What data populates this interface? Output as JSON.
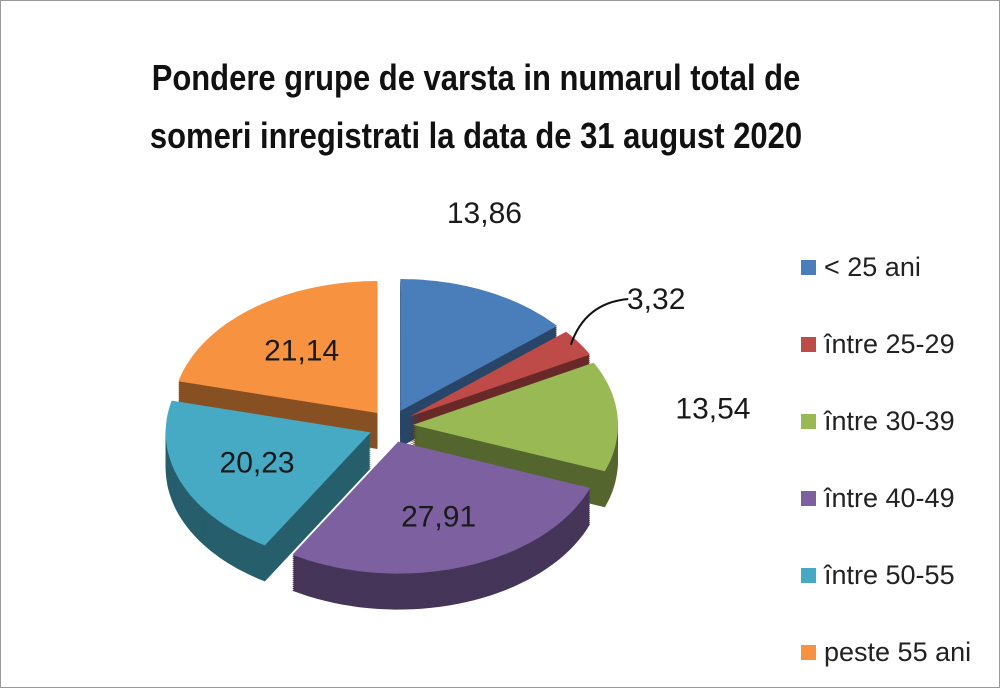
{
  "chart_data": {
    "type": "pie",
    "style": "3d-exploded",
    "title": "Pondere grupe de varsta  in numarul total de someri inregistrati la data de 31 august 2020",
    "title_lines": [
      "Pondere grupe de varsta  in numarul total de",
      "someri inregistrati la data de 31 august 2020"
    ],
    "legend_position": "right",
    "categories": [
      "< 25 ani",
      "între 25-29",
      "între 30-39",
      "între 40-49",
      "între 50-55",
      "peste 55 ani"
    ],
    "values": [
      13.86,
      3.32,
      13.54,
      27.91,
      20.23,
      21.14
    ],
    "labels": [
      "13,86",
      "3,32",
      "13,54",
      "27,91",
      "20,23",
      "21,14"
    ],
    "colors": [
      "#4a7ebb",
      "#be4b48",
      "#98b954",
      "#7d60a0",
      "#46aac5",
      "#f69240"
    ]
  }
}
